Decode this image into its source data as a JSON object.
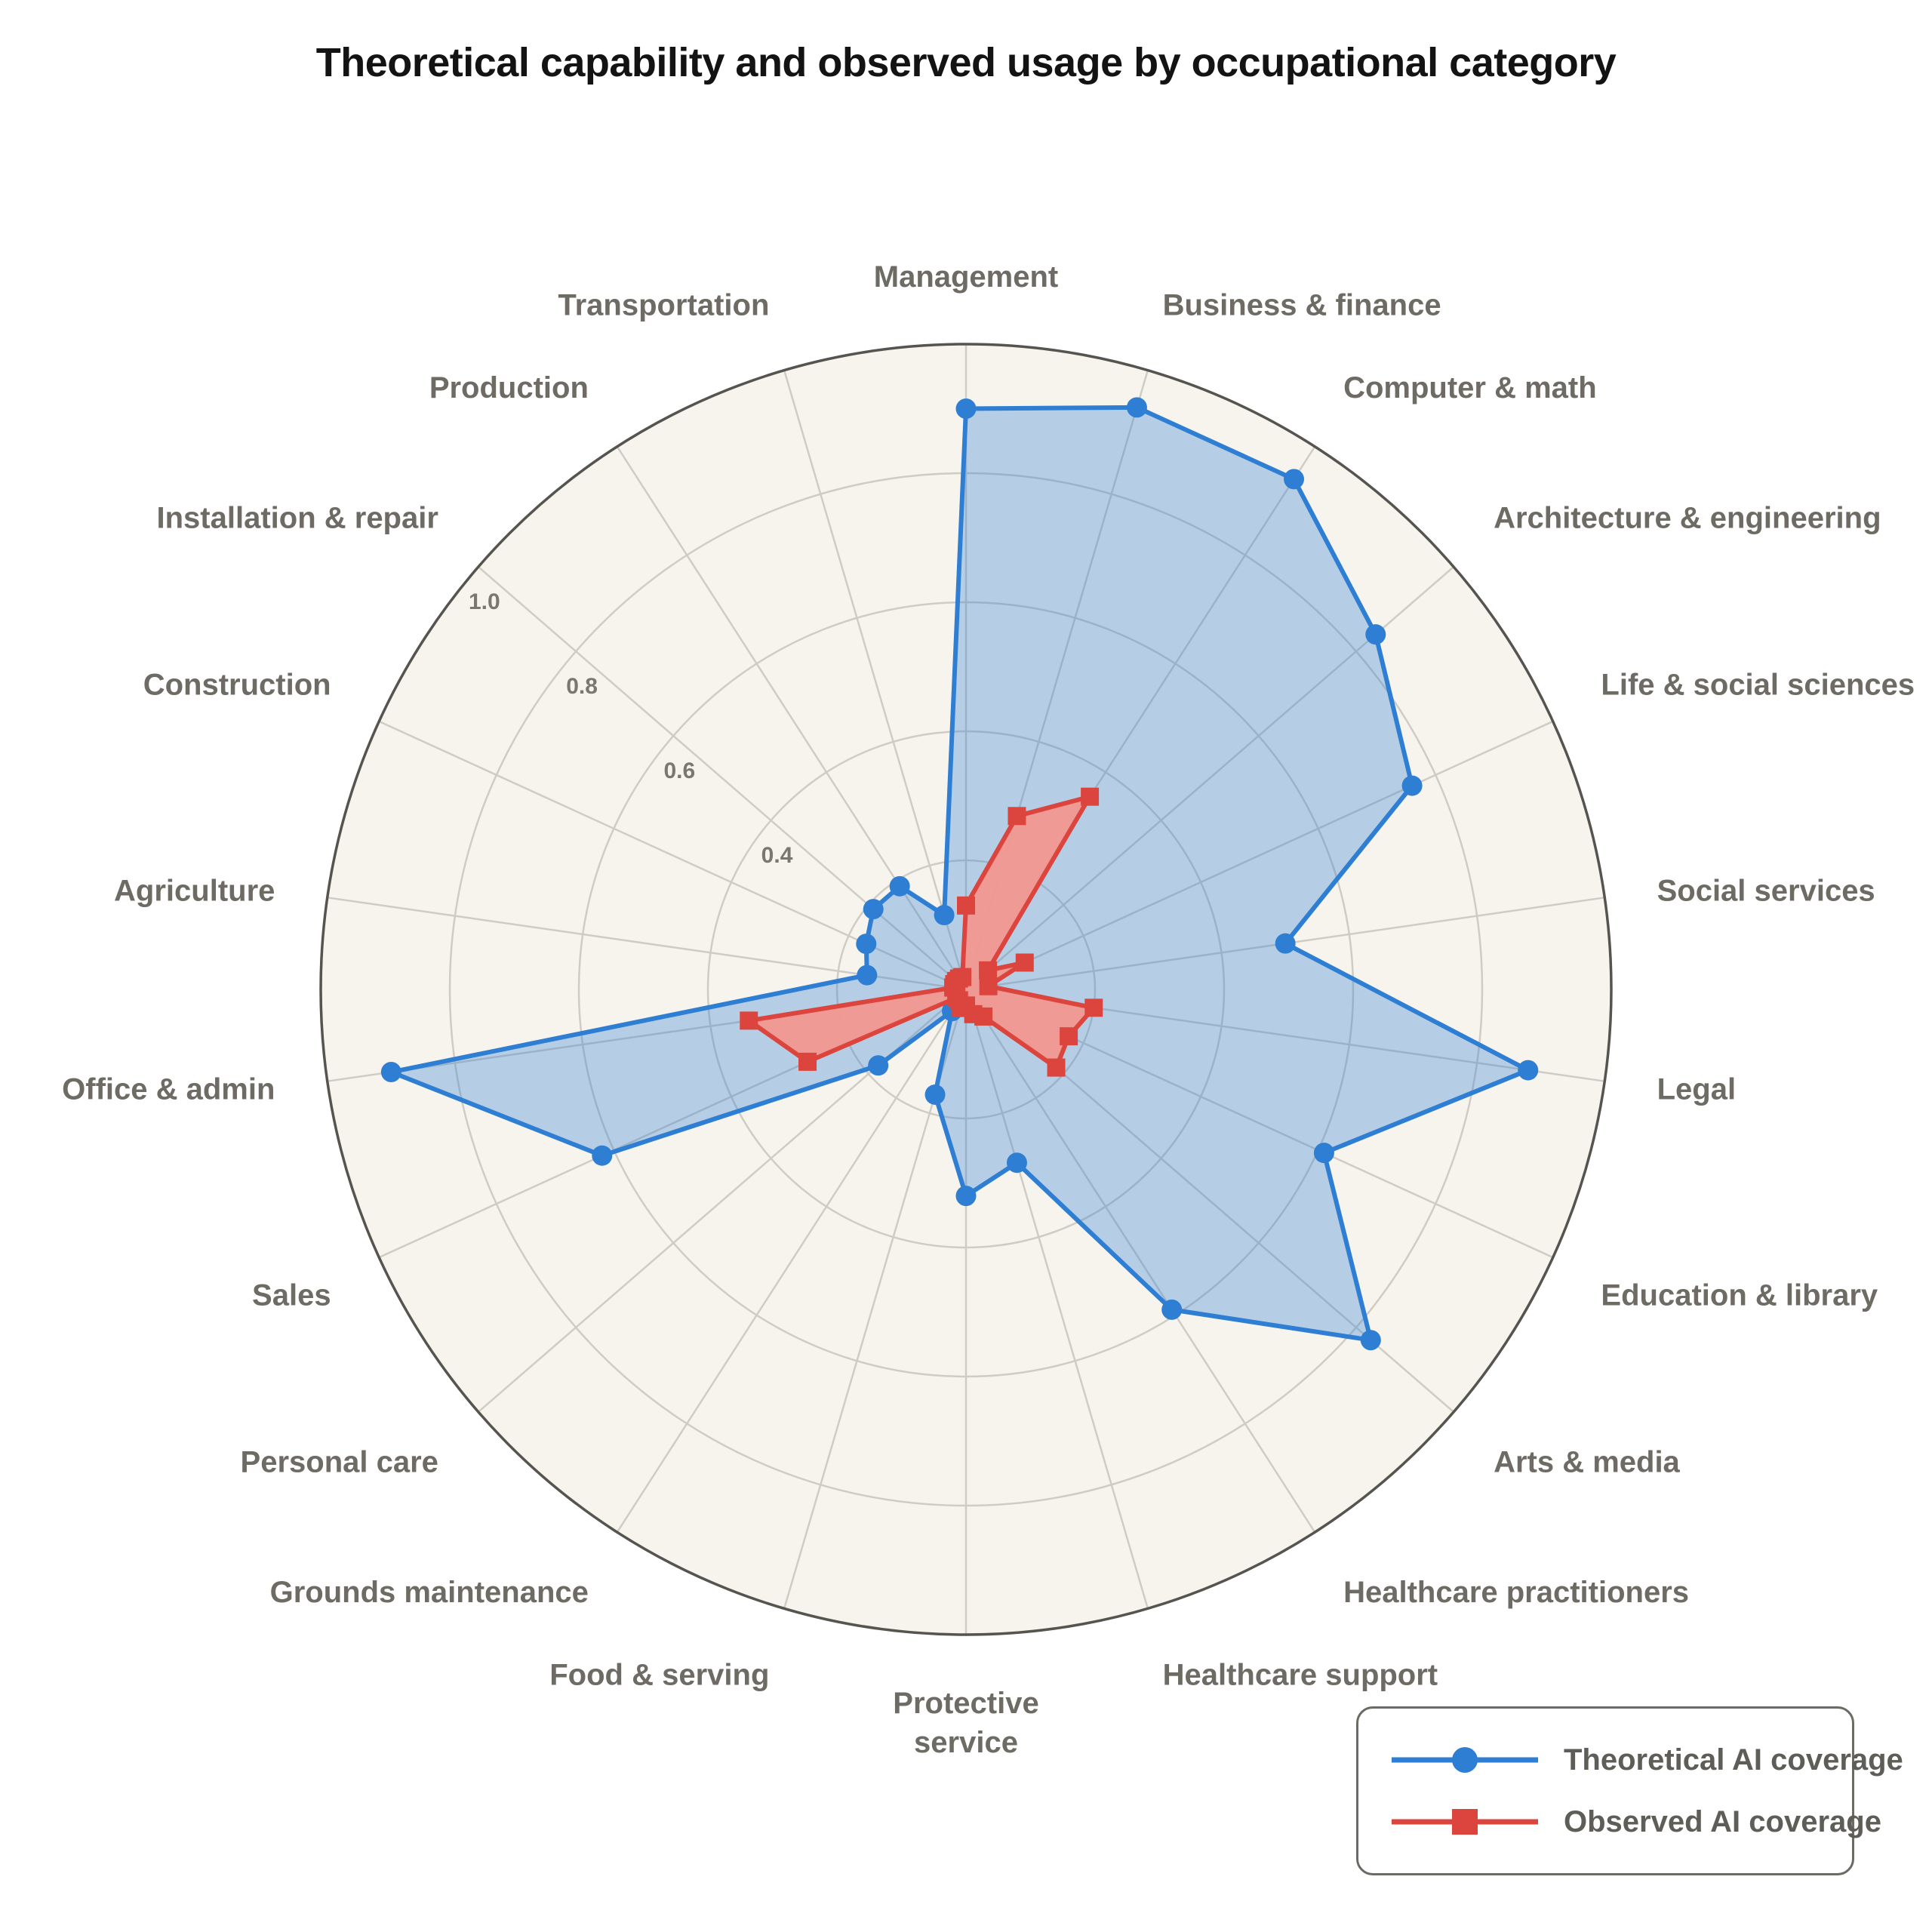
{
  "chart_data": {
    "type": "radar",
    "plot_style": "polar-line",
    "title": "Theoretical capability and observed usage by occupational category",
    "categories": [
      "Management",
      "Business & finance",
      "Computer & math",
      "Architecture & engineering",
      "Life & social sciences",
      "Social services",
      "Legal",
      "Education & library",
      "Arts & media",
      "Healthcare practitioners",
      "Healthcare support",
      "Protective\nservice",
      "Food & serving",
      "Grounds maintenance",
      "Personal care",
      "Sales",
      "Office & admin",
      "Agriculture",
      "Construction",
      "Installation & repair",
      "Production",
      "Transportation"
    ],
    "series": [
      {
        "name": "Theoretical AI coverage",
        "marker": "circle",
        "line_color": "#2e7ed3",
        "fill_color": "rgba(46,126,211,0.32)",
        "values": [
          0.9,
          0.94,
          0.94,
          0.84,
          0.76,
          0.5,
          0.88,
          0.61,
          0.83,
          0.59,
          0.28,
          0.32,
          0.17,
          0.04,
          0.18,
          0.62,
          0.9,
          0.155,
          0.17,
          0.19,
          0.19,
          0.12
        ]
      },
      {
        "name": "Observed AI coverage",
        "marker": "square",
        "line_color": "#dc453e",
        "fill_color": "rgba(242,152,146,0.96)",
        "values": [
          0.13,
          0.28,
          0.355,
          0.045,
          0.1,
          0.035,
          0.2,
          0.175,
          0.185,
          0.05,
          0.04,
          0.025,
          0.03,
          0.02,
          0.02,
          0.27,
          0.34,
          0.02,
          0.02,
          0.02,
          0.02,
          0.02
        ]
      }
    ],
    "radial_axis": {
      "max": 1.0,
      "tick_labels": [
        "0.4",
        "0.6",
        "0.8",
        "1.0"
      ],
      "tick_values": [
        0.4,
        0.6,
        0.8,
        1.0
      ],
      "grid_values": [
        0.2,
        0.4,
        0.6,
        0.8
      ],
      "tick_label_axis": "Installation & repair spoke (upper-left)"
    },
    "angular_axis": {
      "start_deg": 90,
      "direction": "clockwise",
      "num_spokes": 22
    },
    "legend": {
      "position": "bottom-right",
      "items": [
        "Theoretical AI coverage",
        "Observed AI coverage"
      ]
    },
    "colors": {
      "theoretical_line": "#2e7ed3",
      "observed_line": "#dc453e",
      "plot_background": "#f7f4ee",
      "grid": "#cfccc5",
      "outer_ring": "#55544e",
      "category_label": "#6d6b64",
      "tick_label": "#7a776f",
      "legend_text": "#5e5d57",
      "legend_border": "#6b6a64",
      "title": "#131313",
      "page_background": "#ffffff"
    }
  }
}
